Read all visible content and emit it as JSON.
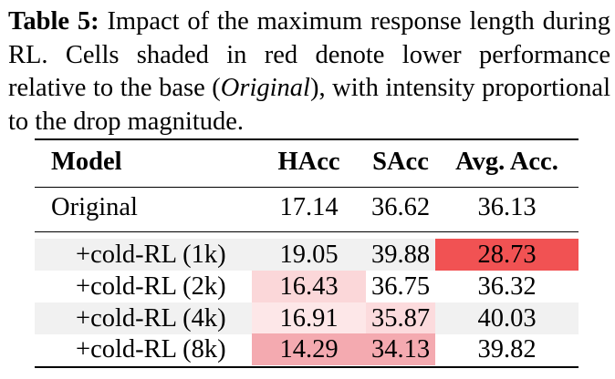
{
  "caption": {
    "label": "Table 5:",
    "text_before_italic": " Impact of the maximum response length during RL. Cells shaded in red denote lower performance relative to the base (",
    "italic": "Original",
    "text_after_italic": "), with intensity proportional to the drop magnitude."
  },
  "table": {
    "headers": [
      "Model",
      "HAcc",
      "SAcc",
      "Avg. Acc."
    ],
    "base_row": {
      "model": "Original",
      "hacc": "17.14",
      "sacc": "36.62",
      "avg": "36.13"
    },
    "rows": [
      {
        "model": "+cold-RL (1k)",
        "hacc": "19.05",
        "sacc": "39.88",
        "avg": "28.73"
      },
      {
        "model": "+cold-RL (2k)",
        "hacc": "16.43",
        "sacc": "36.75",
        "avg": "36.32"
      },
      {
        "model": "+cold-RL (4k)",
        "hacc": "16.91",
        "sacc": "35.87",
        "avg": "40.03"
      },
      {
        "model": "+cold-RL (8k)",
        "hacc": "14.29",
        "sacc": "34.13",
        "avg": "39.82"
      }
    ]
  },
  "colors": {
    "row_shade": "#f1f1f1",
    "drop_strong": "#f15253",
    "drop_medium": "#f4aab0",
    "drop_light": "#fbd7d9",
    "drop_faint": "#fde7e8"
  }
}
